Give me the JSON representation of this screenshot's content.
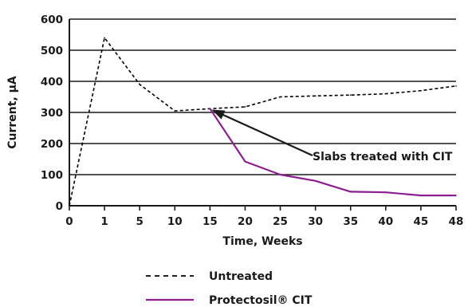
{
  "chart_data": {
    "type": "line",
    "title": "",
    "xlabel": "Time, Weeks",
    "ylabel": "Current, µA",
    "categories": [
      "0",
      "1",
      "5",
      "10",
      "15",
      "20",
      "25",
      "30",
      "35",
      "40",
      "45",
      "48"
    ],
    "yticks": [
      "0",
      "100",
      "200",
      "300",
      "400",
      "500",
      "600"
    ],
    "ylim": [
      0,
      600
    ],
    "grid": "horizontal",
    "legend_position": "bottom",
    "series": [
      {
        "name": "Untreated",
        "style": "dashed",
        "color": "#000000",
        "values": [
          0,
          540,
          390,
          305,
          312,
          318,
          350,
          353,
          356,
          360,
          370,
          385
        ]
      },
      {
        "name": "Protectosil® CIT",
        "style": "solid",
        "color": "#8b1f8f",
        "values": [
          null,
          null,
          null,
          null,
          312,
          142,
          100,
          80,
          45,
          43,
          33,
          33
        ]
      }
    ],
    "annotations": [
      {
        "text": "Slabs treated with CIT",
        "points_to": {
          "x": "15",
          "y": 312
        }
      }
    ]
  }
}
